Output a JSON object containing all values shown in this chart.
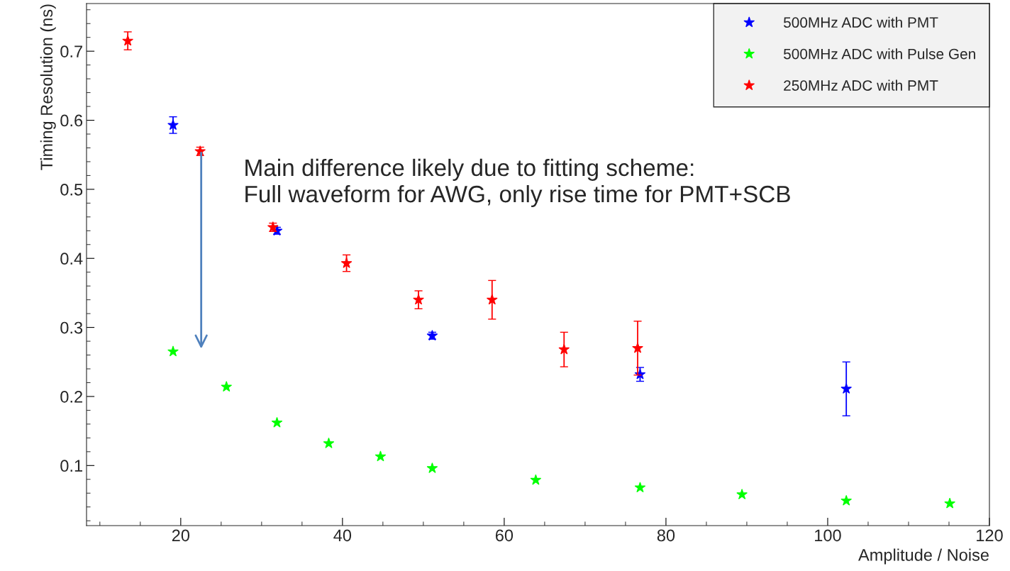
{
  "chart_data": {
    "type": "scatter",
    "xlabel": "Amplitude / Noise",
    "ylabel": "Timing Resolution (ns)",
    "xlim": [
      8.35,
      120
    ],
    "xticks": [
      20,
      40,
      60,
      80,
      100,
      120
    ],
    "ylim": [
      0.013,
      0.769
    ],
    "yticks": [
      0.1,
      0.2,
      0.3,
      0.4,
      0.5,
      0.6,
      0.7
    ],
    "grid": false,
    "legend": "top right",
    "marker": "star",
    "annotations": [
      "Main difference likely due to fitting scheme:\nFull waveform for AWG, only rise time for PMT+SCB"
    ],
    "series": [
      {
        "name": "500MHz ADC with PMT",
        "color": "#0000ff",
        "x": [
          19.05,
          31.9,
          51.1,
          76.8,
          102.3
        ],
        "values": [
          0.593,
          0.44,
          0.288,
          0.232,
          0.211
        ],
        "errors": [
          0.012,
          0.005,
          0.005,
          0.01,
          0.039
        ]
      },
      {
        "name": "500MHz ADC with Pulse Gen",
        "color": "#00ff00",
        "x": [
          19.05,
          25.65,
          31.9,
          38.3,
          44.7,
          51.1,
          63.9,
          76.8,
          89.4,
          102.3,
          115.1
        ],
        "values": [
          0.265,
          0.214,
          0.162,
          0.132,
          0.113,
          0.096,
          0.079,
          0.068,
          0.058,
          0.049,
          0.045
        ]
      },
      {
        "name": "250MHz ADC with PMT",
        "color": "#ff0000",
        "x": [
          13.45,
          22.4,
          31.4,
          40.5,
          49.4,
          58.5,
          67.4,
          76.5
        ],
        "values": [
          0.715,
          0.555,
          0.445,
          0.393,
          0.34,
          0.34,
          0.268,
          0.27
        ],
        "errors": [
          0.013,
          0.006,
          0.006,
          0.012,
          0.013,
          0.028,
          0.025,
          0.039
        ]
      }
    ]
  }
}
